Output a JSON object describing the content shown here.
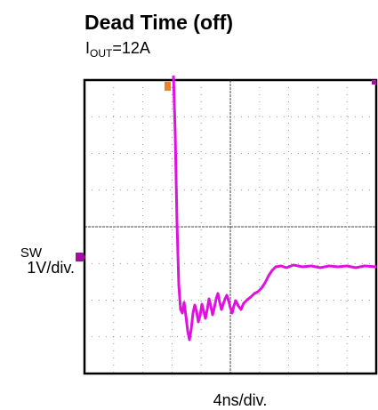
{
  "header": {
    "title": "Dead Time (off)",
    "subtitle": {
      "main": "I",
      "subscript": "OUT",
      "rest": "=12A"
    }
  },
  "scope": {
    "channel_label": "SW",
    "vertical_scale": "1V/div.",
    "horizontal_scale": "4ns/div."
  }
}
